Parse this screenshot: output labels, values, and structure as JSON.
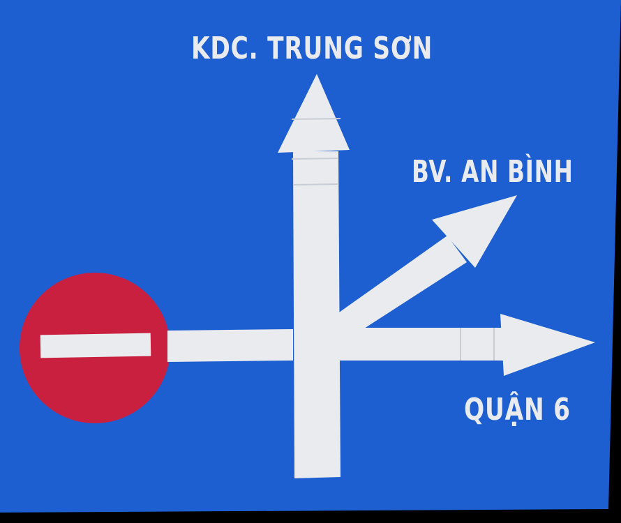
{
  "sign": {
    "background_color": "#1d5fd1",
    "symbol_color": "#e9ebef",
    "no_entry_color": "#c9203f",
    "icon": "no-entry-icon",
    "destinations": {
      "straight": "KDC. TRUNG SƠN",
      "right_diagonal": "BV. AN BÌNH",
      "right": "QUẬN 6"
    }
  }
}
